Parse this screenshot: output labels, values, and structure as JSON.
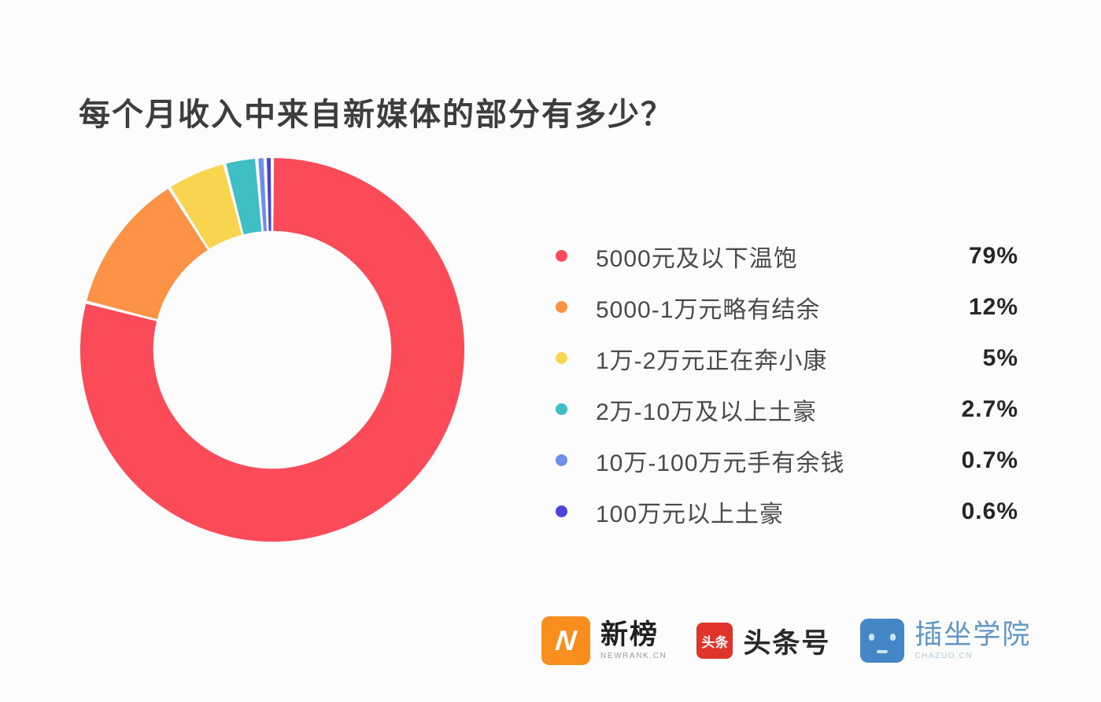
{
  "title": "每个月收入中来自新媒体的部分有多少？",
  "chart_data": {
    "type": "pie",
    "subtype": "donut",
    "title": "每个月收入中来自新媒体的部分有多少？",
    "categories": [
      "5000元及以下温饱",
      "5000-1万元略有结余",
      "1万-2万元正在奔小康",
      "2万-10万及以上土豪",
      "10万-100万元手有余钱",
      "100万元以上土豪"
    ],
    "values": [
      79,
      12,
      5,
      2.7,
      0.7,
      0.6
    ],
    "value_labels": [
      "79%",
      "12%",
      "5%",
      "2.7%",
      "0.7%",
      "0.6%"
    ],
    "colors": [
      "#FB4B59",
      "#FB9245",
      "#F9D44E",
      "#3FBFC4",
      "#6E8FE8",
      "#4B44D8"
    ],
    "start_angle": "top",
    "direction": "clockwise",
    "inner_radius_ratio": 0.62,
    "slice_gap_deg": 1.0,
    "legend_position": "right",
    "grid": false
  },
  "footer": {
    "logos": [
      {
        "name": "newrank",
        "badge_glyph": "N",
        "badge_color": "#F78E1E",
        "text": "新榜",
        "subtext": "NEWRANK.CN"
      },
      {
        "name": "toutiao",
        "badge_text": "头条",
        "badge_color": "#E0342B",
        "text": "头条号"
      },
      {
        "name": "chazuo",
        "badge_color": "#4586C6",
        "text": "插坐学院",
        "subtext": "CHAZUO.CN"
      }
    ]
  }
}
